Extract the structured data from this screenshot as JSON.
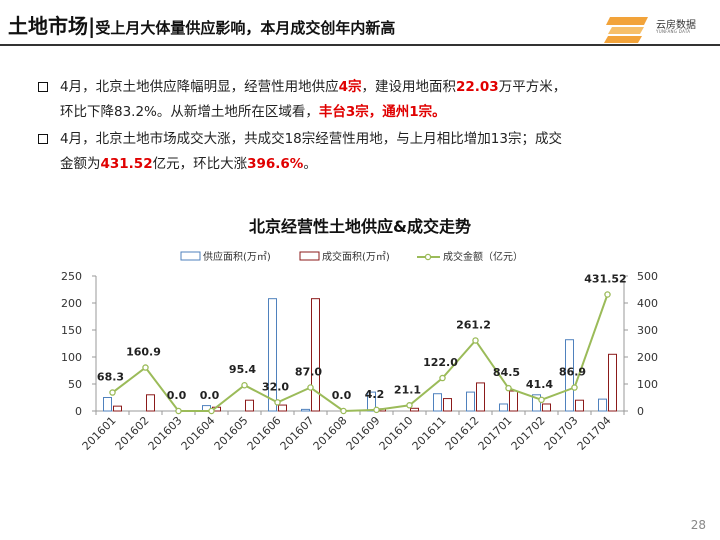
{
  "header": {
    "title_main": "土地市场",
    "title_sep": "|",
    "title_sub": "受上月大体量供应影响，本月成交创年内新高",
    "logo_text": "云房数据",
    "logo_sub": "YUNFANG DATA"
  },
  "bullets": [
    {
      "line1": [
        {
          "t": "4月，北京土地供应降幅明显，经营性用地供应",
          "red": false
        },
        {
          "t": "4宗",
          "red": true
        },
        {
          "t": "，建设用地面积",
          "red": false
        },
        {
          "t": "22.03",
          "red": true
        },
        {
          "t": "万平方米，",
          "red": false
        }
      ],
      "line2": [
        {
          "t": "环比下降83.2%。从新增土地所在区域看，",
          "red": false
        },
        {
          "t": "丰台3宗，通州1宗。",
          "red": true
        }
      ]
    },
    {
      "line1": [
        {
          "t": "4月，北京土地市场成交大涨，共成交18宗经营性用地，与上月相比增加13宗；成交",
          "red": false
        }
      ],
      "line2": [
        {
          "t": "金额为",
          "red": false
        },
        {
          "t": "431.52",
          "red": true
        },
        {
          "t": "亿元，环比大涨",
          "red": false
        },
        {
          "t": "396.6%",
          "red": true
        },
        {
          "t": "。",
          "red": false
        }
      ]
    }
  ],
  "chart_data": {
    "type": "bar",
    "title": "北京经营性土地供应&成交走势",
    "categories": [
      "201601",
      "201602",
      "201603",
      "201604",
      "201605",
      "201606",
      "201607",
      "201608",
      "201609",
      "201610",
      "201611",
      "201612",
      "201701",
      "201702",
      "201703",
      "201704"
    ],
    "series": [
      {
        "name": "供应面积(万㎡)",
        "type": "bar",
        "axis": "left",
        "color": "#4f81bd",
        "values": [
          25,
          0,
          0,
          10,
          0,
          208,
          3,
          0,
          35,
          0,
          32,
          35,
          13,
          30,
          132,
          22
        ]
      },
      {
        "name": "成交面积(万㎡)",
        "type": "bar",
        "axis": "left",
        "color": "#8b1a1a",
        "values": [
          9,
          30,
          0,
          7,
          20,
          11,
          208,
          0,
          4,
          5,
          23,
          52,
          37,
          13,
          20,
          105
        ]
      },
      {
        "name": "成交金额（亿元）",
        "type": "line",
        "axis": "right",
        "color": "#9bbb59",
        "values": [
          68.3,
          160.9,
          0.0,
          0.0,
          95.4,
          32.0,
          87.0,
          0.0,
          4.2,
          21.1,
          122.0,
          261.2,
          84.5,
          41.4,
          86.9,
          431.52
        ],
        "labels": [
          "68.3",
          "160.9",
          "0.0",
          "0.0",
          "95.4",
          "32.0",
          "87.0",
          "0.0",
          "4.2",
          "21.1",
          "122.0",
          "261.2",
          "84.5",
          "41.4",
          "86.9",
          "431.52"
        ]
      }
    ],
    "left_axis": {
      "min": 0,
      "max": 250,
      "ticks": [
        "0",
        "50",
        "100",
        "150",
        "200",
        "250"
      ]
    },
    "right_axis": {
      "min": 0,
      "max": 500,
      "ticks": [
        "0",
        "100",
        "200",
        "300",
        "400",
        "500"
      ]
    },
    "legend_position": "top",
    "grid": false
  },
  "page_number": "28"
}
